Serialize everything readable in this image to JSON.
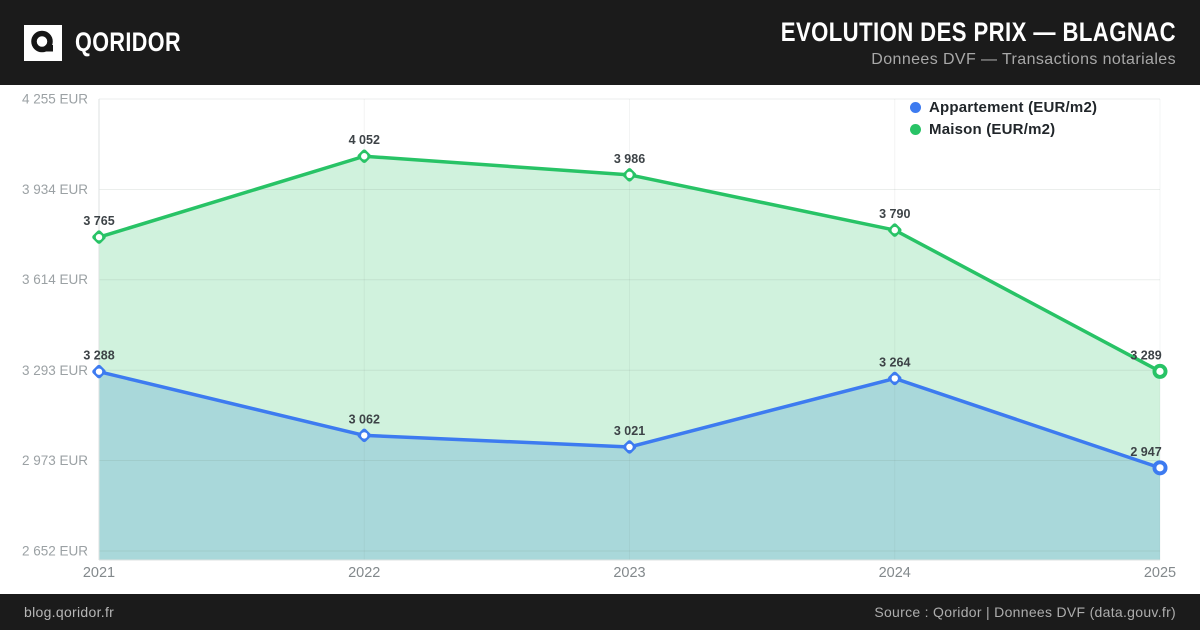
{
  "header": {
    "brand": "QORIDOR",
    "title": "EVOLUTION DES PRIX — BLAGNAC",
    "subtitle": "Donnees DVF — Transactions notariales"
  },
  "footer": {
    "left": "blog.qoridor.fr",
    "right": "Source : Qoridor | Donnees DVF (data.gouv.fr)"
  },
  "chart_data": {
    "type": "line",
    "title": "EVOLUTION DES PRIX — BLAGNAC",
    "categories": [
      "2021",
      "2022",
      "2023",
      "2024",
      "2025"
    ],
    "series": [
      {
        "name": "Appartement (EUR/m2)",
        "color": "#3d7bf0",
        "fill": "rgba(61,123,240,0.25)",
        "values": [
          3288,
          3062,
          3021,
          3264,
          2947
        ]
      },
      {
        "name": "Maison (EUR/m2)",
        "color": "#28c366",
        "fill": "rgba(40,195,102,0.22)",
        "values": [
          3765,
          4052,
          3986,
          3790,
          3289
        ]
      }
    ],
    "y_ticks": [
      4255,
      3934,
      3614,
      3293,
      2973,
      2652
    ],
    "y_tick_suffix": " EUR",
    "ylim": [
      2652,
      4255
    ],
    "xlabel": "",
    "ylabel": "",
    "grid": true,
    "legend_position": "top-right",
    "colors": {
      "header_bg": "#1b1b1b",
      "grid_line": "rgba(100,120,110,0.13)",
      "axis_line": "#dde2e0",
      "tick_label": "#9ba1a4",
      "x_label": "#83898c",
      "point_label": "#3d4347"
    }
  }
}
